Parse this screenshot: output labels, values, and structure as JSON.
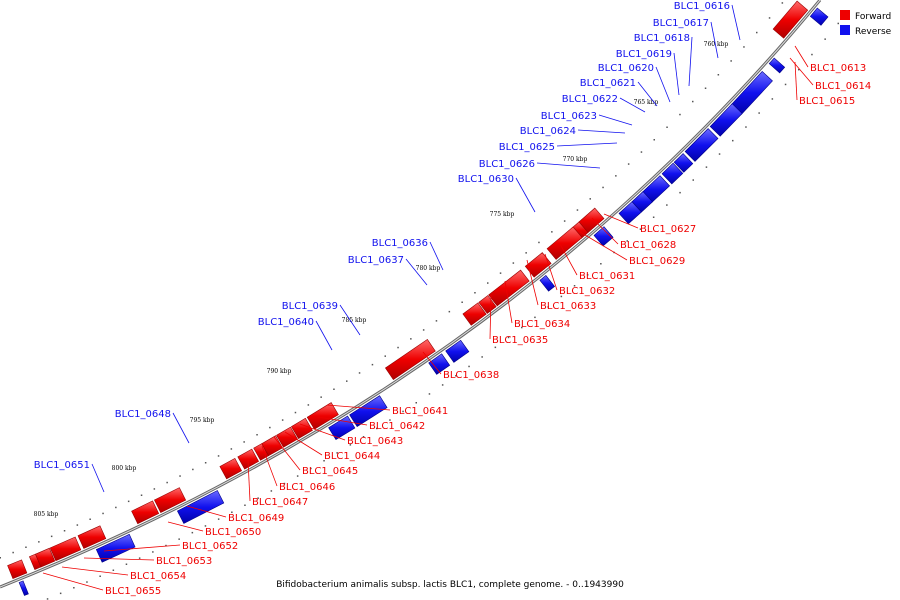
{
  "legend": [
    {
      "label": "Forward",
      "color": "#ee0000"
    },
    {
      "label": "Reverse",
      "color": "#1111ee"
    }
  ],
  "caption": "Bifidobacterium animalis subsp. lactis BLC1, complete genome. - 0..1943990",
  "ticks": [
    "760 kbp",
    "765 kbp",
    "770 kbp",
    "775 kbp",
    "780 kbp",
    "785 kbp",
    "790 kbp",
    "795 kbp",
    "800 kbp",
    "805 kbp"
  ],
  "forward_genes": [
    "BLC1_0613",
    "BLC1_0614",
    "BLC1_0615",
    "BLC1_0627",
    "BLC1_0628",
    "BLC1_0629",
    "BLC1_0631",
    "BLC1_0632",
    "BLC1_0633",
    "BLC1_0634",
    "BLC1_0635",
    "BLC1_0638",
    "BLC1_0641",
    "BLC1_0642",
    "BLC1_0643",
    "BLC1_0644",
    "BLC1_0645",
    "BLC1_0646",
    "BLC1_0647",
    "BLC1_0649",
    "BLC1_0650",
    "BLC1_0652",
    "BLC1_0653",
    "BLC1_0654",
    "BLC1_0655"
  ],
  "reverse_genes": [
    "BLC1_0616",
    "BLC1_0617",
    "BLC1_0618",
    "BLC1_0619",
    "BLC1_0620",
    "BLC1_0621",
    "BLC1_0622",
    "BLC1_0623",
    "BLC1_0624",
    "BLC1_0625",
    "BLC1_0626",
    "BLC1_0630",
    "BLC1_0636",
    "BLC1_0637",
    "BLC1_0639",
    "BLC1_0640",
    "BLC1_0648",
    "BLC1_0651"
  ]
}
